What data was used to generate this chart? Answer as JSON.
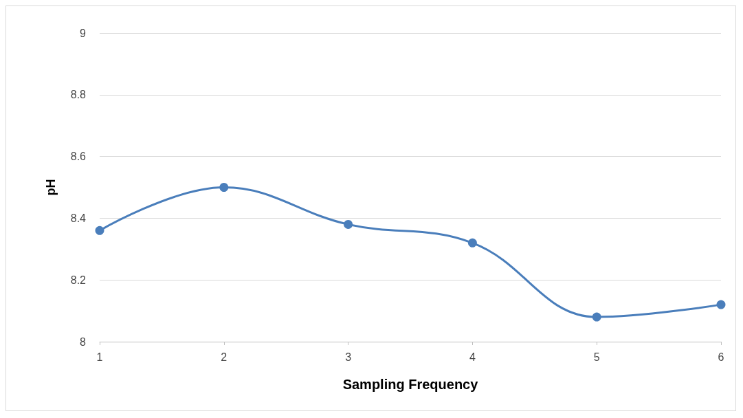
{
  "chart_data": {
    "type": "line",
    "xlabel": "Sampling Frequency",
    "ylabel": "pH",
    "x": [
      1,
      2,
      3,
      4,
      5,
      6
    ],
    "series": [
      {
        "color": "#4a7ebb",
        "values": [
          8.36,
          8.5,
          8.38,
          8.32,
          8.08,
          8.12
        ]
      }
    ],
    "xlim": [
      1,
      6
    ],
    "xticks": [
      1,
      2,
      3,
      4,
      5,
      6
    ],
    "ylim": [
      8,
      9
    ],
    "yticks": [
      8,
      8.2,
      8.4,
      8.6,
      8.8,
      9
    ],
    "grid": "y",
    "marker": "circle",
    "line_style": "solid"
  }
}
